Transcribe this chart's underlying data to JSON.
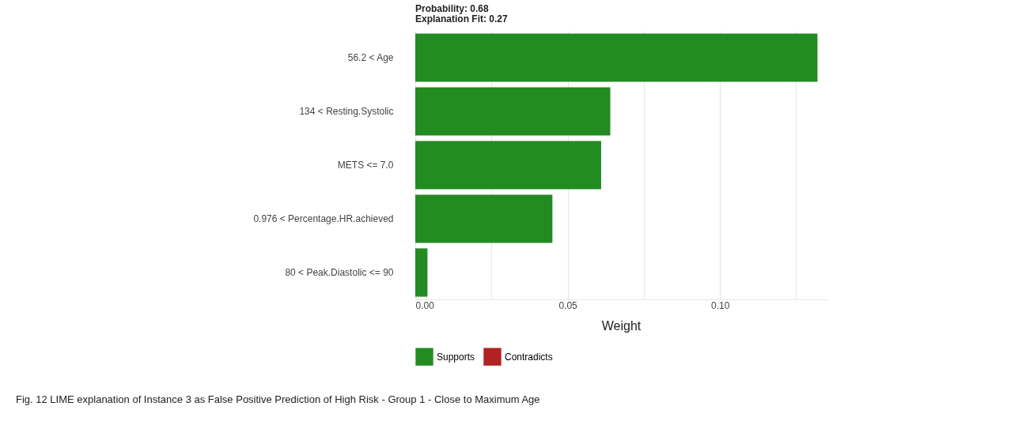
{
  "chart_data": {
    "type": "bar",
    "orientation": "horizontal",
    "title": "Probability: 0.68",
    "subtitle": "Explanation Fit: 0.27",
    "xlabel": "Weight",
    "categories": [
      "56.2 < Age",
      "134 < Resting.Systolic",
      "METS <= 7.0",
      "0.976 < Percentage.HR.achieved",
      "80 < Peak.Diastolic <= 90"
    ],
    "series": [
      {
        "name": "Supports",
        "color": "#228b22",
        "values": [
          0.132,
          0.064,
          0.061,
          0.045,
          0.004
        ]
      },
      {
        "name": "Contradicts",
        "color": "#b22222",
        "values": [
          null,
          null,
          null,
          null,
          null
        ]
      }
    ],
    "xlim": [
      0,
      0.135
    ],
    "xticks": [
      {
        "value": 0,
        "label": "0.00"
      },
      {
        "value": 0.025,
        "label": null
      },
      0.05,
      {
        "value": 0.075,
        "label": null
      },
      {
        "value": 0.1,
        "label": "0.10"
      },
      {
        "value": 0.125,
        "label": null
      }
    ],
    "grid": "x",
    "legend": "bottom",
    "annotations": [
      "Fig. 12 LIME explanation of Instance 3 as False Positive Prediction of High Risk - Group 1 - Close to Maximum Age"
    ]
  }
}
